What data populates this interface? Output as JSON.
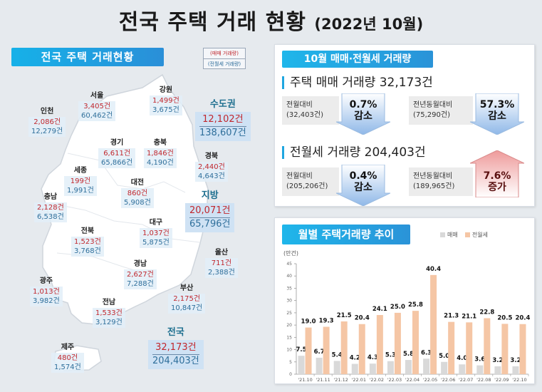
{
  "title": {
    "main": "전국 주택 거래 현황",
    "sub": "(2022년 10월)"
  },
  "left": {
    "banner": "전국 주택 거래현황",
    "legend": {
      "sale": "(매매 거래량)",
      "lease": "(전월세 거래량)"
    },
    "regions": [
      {
        "name": "서울",
        "sale": "3,405건",
        "lease": "60,462건"
      },
      {
        "name": "인천",
        "sale": "2,086건",
        "lease": "12,279건"
      },
      {
        "name": "강원",
        "sale": "1,499건",
        "lease": "3,675건"
      },
      {
        "name": "경기",
        "sale": "6,611건",
        "lease": "65,866건"
      },
      {
        "name": "충북",
        "sale": "1,846건",
        "lease": "4,190건"
      },
      {
        "name": "경북",
        "sale": "2,440건",
        "lease": "4,643건"
      },
      {
        "name": "세종",
        "sale": "199건",
        "lease": "1,991건"
      },
      {
        "name": "대전",
        "sale": "860건",
        "lease": "5,908건"
      },
      {
        "name": "충남",
        "sale": "2,128건",
        "lease": "6,538건"
      },
      {
        "name": "대구",
        "sale": "1,037건",
        "lease": "5,875건"
      },
      {
        "name": "전북",
        "sale": "1,523건",
        "lease": "3,768건"
      },
      {
        "name": "울산",
        "sale": "711건",
        "lease": "2,388건"
      },
      {
        "name": "경남",
        "sale": "2,627건",
        "lease": "7,288건"
      },
      {
        "name": "광주",
        "sale": "1,013건",
        "lease": "3,982건"
      },
      {
        "name": "부산",
        "sale": "2,175건",
        "lease": "10,847건"
      },
      {
        "name": "전남",
        "sale": "1,533건",
        "lease": "3,129건"
      },
      {
        "name": "제주",
        "sale": "480건",
        "lease": "1,574건"
      }
    ],
    "totals": [
      {
        "name": "수도권",
        "sale": "12,102건",
        "lease": "138,607건"
      },
      {
        "name": "지방",
        "sale": "20,071건",
        "lease": "65,796건"
      },
      {
        "name": "전국",
        "sale": "32,173건",
        "lease": "204,403건"
      }
    ]
  },
  "summary": {
    "banner": "10월 매매·전월세 거래량",
    "sale": {
      "heading": "주택 매매 거래량 32,173건",
      "mom": {
        "label": "전월대비",
        "base": "(32,403건)",
        "pct": "0.7%",
        "dir": "감소"
      },
      "yoy": {
        "label": "전년동월대비",
        "base": "(75,290건)",
        "pct": "57.3%",
        "dir": "감소"
      }
    },
    "lease": {
      "heading": "전월세 거래량 204,403건",
      "mom": {
        "label": "전월대비",
        "base": "(205,206건)",
        "pct": "0.4%",
        "dir": "감소"
      },
      "yoy": {
        "label": "전년동월대비",
        "base": "(189,965건)",
        "pct": "7.6%",
        "dir": "증가"
      }
    }
  },
  "chart": {
    "banner": "월별 주택거래량 추이",
    "legend": {
      "sale": "매매",
      "lease": "전월세"
    },
    "unit": "(만건)",
    "colors": {
      "sale": "#d9d9d9",
      "lease": "#f5c6a5"
    }
  },
  "chart_data": {
    "type": "bar",
    "title": "월별 주택거래량 추이",
    "ylabel": "(만건)",
    "xlabel": "",
    "ylim": [
      0,
      45
    ],
    "yticks": [
      0,
      5,
      10,
      15,
      20,
      25,
      30,
      35,
      40,
      45
    ],
    "categories": [
      "'21.10",
      "'21.11",
      "'21.12",
      "'22.01",
      "'22.02",
      "'22.03",
      "'22.04",
      "'22.05",
      "'22.06",
      "'22.07",
      "'22.08",
      "'22.09",
      "'22.10"
    ],
    "series": [
      {
        "name": "매매",
        "values": [
          7.5,
          6.7,
          5.4,
          4.2,
          4.3,
          5.3,
          5.8,
          6.3,
          5.0,
          4.0,
          3.6,
          3.2,
          3.2
        ]
      },
      {
        "name": "전월세",
        "values": [
          19.0,
          19.3,
          21.5,
          20.4,
          24.1,
          25.0,
          25.8,
          40.4,
          21.3,
          21.1,
          22.8,
          20.5,
          20.4
        ]
      }
    ],
    "legend_position": "top-right",
    "grid": false
  }
}
